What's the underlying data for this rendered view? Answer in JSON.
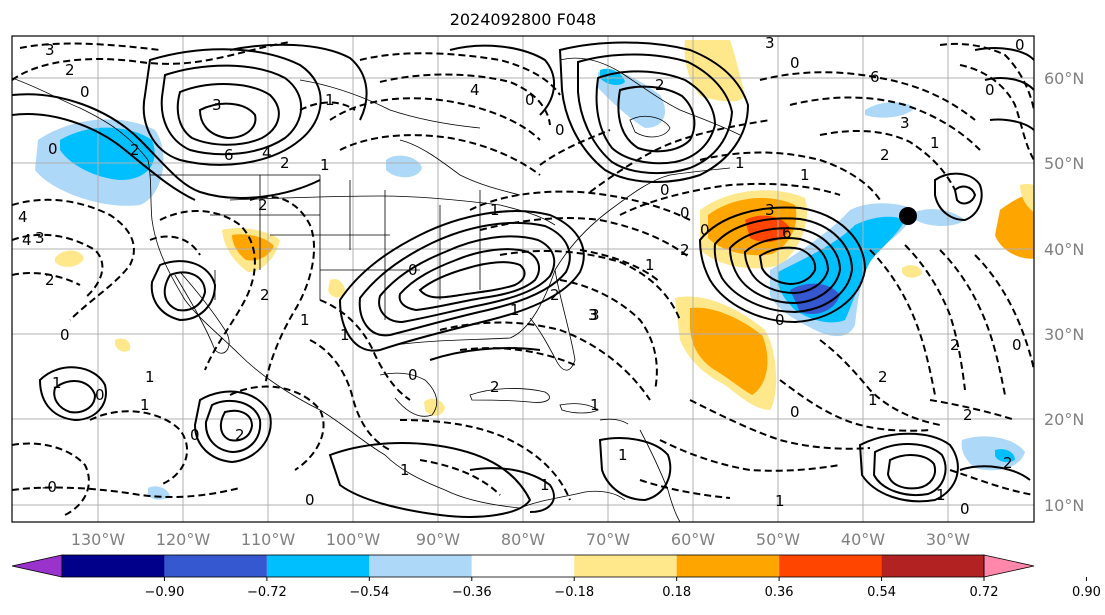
{
  "title": "2024092800 F048",
  "lat_labels": [
    "60°N",
    "50°N",
    "40°N",
    "30°N",
    "20°N",
    "10°N"
  ],
  "lon_labels": [
    "130°W",
    "120°W",
    "110°W",
    "100°W",
    "90°W",
    "80°W",
    "70°W",
    "60°W",
    "50°W",
    "40°W",
    "30°W"
  ],
  "colorbar": {
    "colors": [
      "#9933cc",
      "#00008b",
      "#3557cf",
      "#00bfff",
      "#add8f8",
      "#ffffff",
      "#ffe88c",
      "#ffa500",
      "#ff4500",
      "#b22222",
      "#ff88aa"
    ],
    "tick_labels": [
      "−0.90",
      "−0.72",
      "−0.54",
      "−0.36",
      "−0.18",
      "0.18",
      "0.36",
      "0.54",
      "0.72",
      "0.90"
    ]
  },
  "contour_labels": [
    "3",
    "2",
    "0",
    "2",
    "3",
    "6",
    "2",
    "4",
    "1",
    "2",
    "4",
    "3",
    "2",
    "0",
    "4",
    "0",
    "3",
    "6",
    "2",
    "0",
    "3",
    "0",
    "0",
    "1",
    "0",
    "1",
    "1",
    "2",
    "3",
    "6",
    "0",
    "2",
    "3",
    "1",
    "2",
    "0",
    "1",
    "2",
    "2",
    "1",
    "0",
    "1",
    "2",
    "0",
    "0",
    "1",
    "0",
    "1",
    "0",
    "2",
    "1",
    "4",
    "1",
    "1",
    "1",
    "2",
    "1",
    "0",
    "2",
    "1",
    "0",
    "1",
    "2",
    "1",
    "1",
    "0",
    "0",
    "-0",
    "0",
    "1",
    "0",
    "3"
  ],
  "marker": {
    "name": "black-dot",
    "color": "#000000"
  }
}
